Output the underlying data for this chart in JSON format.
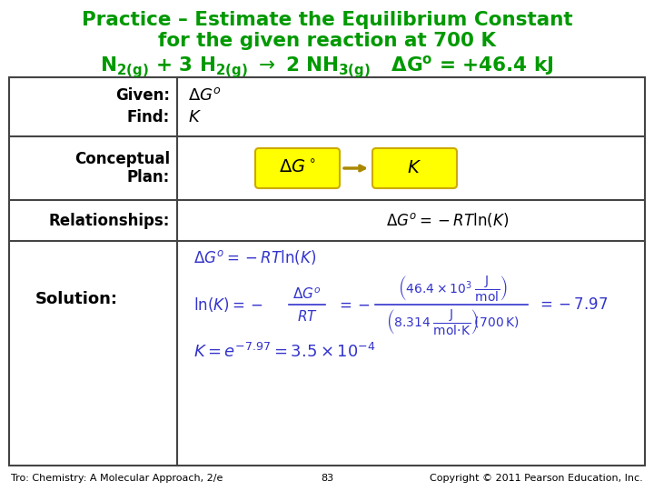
{
  "bg_color": "#ffffff",
  "green_title_color": "#009900",
  "blue_text_color": "#3333cc",
  "black_text_color": "#000000",
  "yellow_box_color": "#ffff00",
  "yellow_border_color": "#ccaa00",
  "table_border_color": "#444444",
  "footer_left": "Tro: Chemistry: A Molecular Approach, 2/e",
  "footer_center": "83",
  "footer_right": "Copyright © 2011 Pearson Education, Inc."
}
